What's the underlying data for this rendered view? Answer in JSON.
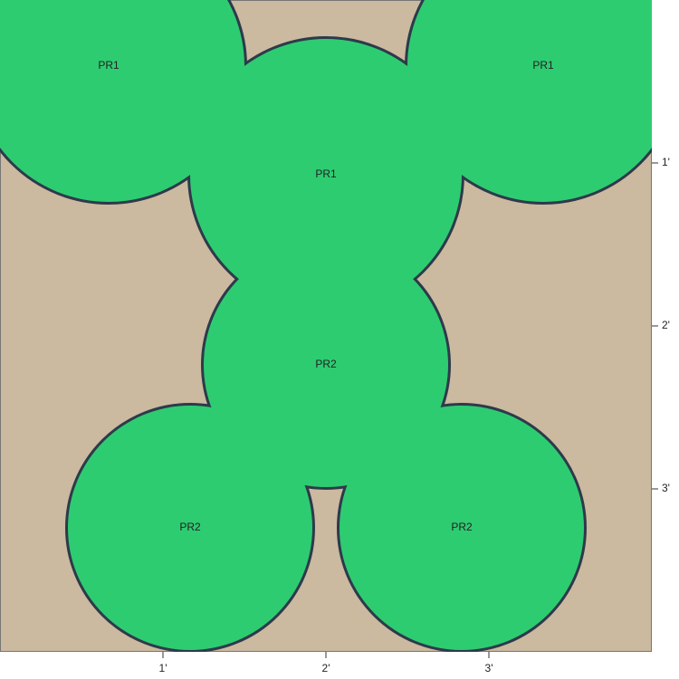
{
  "plants": [
    "PR1",
    "PR1",
    "PR1",
    "PR2",
    "PR2",
    "PR2"
  ],
  "x_ticks": [
    "1'",
    "2'",
    "3'"
  ],
  "y_ticks": [
    "1'",
    "2'",
    "3'"
  ]
}
